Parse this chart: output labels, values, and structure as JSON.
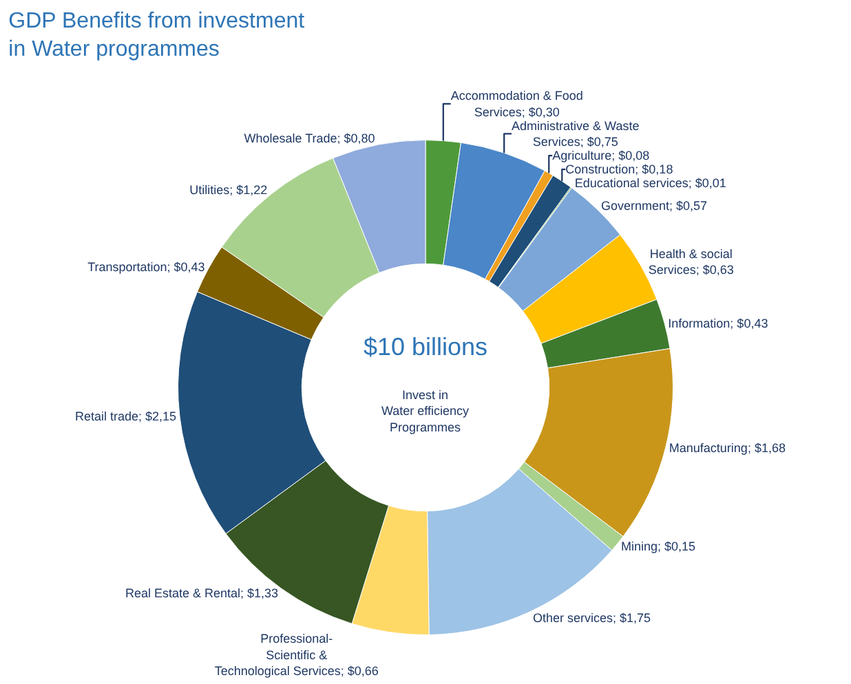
{
  "chart_data": {
    "type": "donut",
    "title": "GDP Benefits from investment\nin Water programmes",
    "categories": [
      "Accommodation & Food Services",
      "Administrative & Waste Services",
      "Agriculture",
      "Construction",
      "Educational services",
      "Government",
      "Health & social Services",
      "Information",
      "Manufacturing",
      "Mining",
      "Other services",
      "Professional-Scientific & Technological Services",
      "Real Estate & Rental",
      "Retail trade",
      "Transportation",
      "Utilities",
      "Wholesale Trade"
    ],
    "values": [
      0.3,
      0.75,
      0.08,
      0.18,
      0.01,
      0.57,
      0.63,
      0.43,
      1.68,
      0.15,
      1.75,
      0.66,
      1.33,
      2.15,
      0.43,
      1.22,
      0.8
    ],
    "value_labels": [
      "$0,30",
      "$0,75",
      "$0,08",
      "$0,18",
      "$0,01",
      "$0,57",
      "$0,63",
      "$0,43",
      "$1,68",
      "$0,15",
      "$1,75",
      "$0,66",
      "$1,33",
      "$2,15",
      "$0,43",
      "$1,22",
      "$0,80"
    ],
    "colors": [
      "#4e9a3a",
      "#4a86c8",
      "#f0a020",
      "#1f4e79",
      "#70ad47",
      "#7ca6d8",
      "#ffc000",
      "#3d7a2e",
      "#c9961a",
      "#a9d18e",
      "#9dc3e6",
      "#ffd966",
      "#375623",
      "#1f4e79",
      "#7f6000",
      "#a9d18e",
      "#8faadc"
    ],
    "legend": false,
    "annotations": [
      "$10 billions",
      "Invest in\nWater efficiency\nProgrammes"
    ]
  }
}
